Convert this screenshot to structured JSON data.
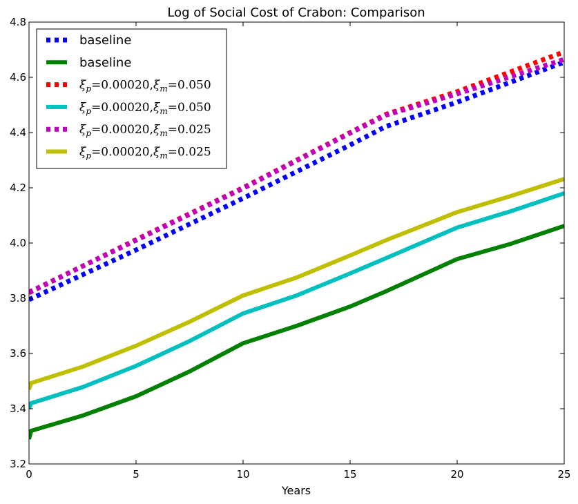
{
  "chart_data": {
    "type": "line",
    "title": "Log of Social Cost of Crabon: Comparison",
    "xlabel": "Years",
    "ylabel": "",
    "xlim": [
      0,
      25
    ],
    "ylim": [
      3.2,
      4.8
    ],
    "xticks": [
      0,
      5,
      10,
      15,
      20,
      25
    ],
    "yticks": [
      3.2,
      3.4,
      3.6,
      3.8,
      4.0,
      4.2,
      4.4,
      4.6,
      4.8
    ],
    "xtick_labels": [
      "0",
      "5",
      "10",
      "15",
      "20",
      "25"
    ],
    "ytick_labels": [
      "3.2",
      "3.4",
      "3.6",
      "3.8",
      "4.0",
      "4.2",
      "4.4",
      "4.6",
      "4.8"
    ],
    "grid": false,
    "legend_position": "top-left",
    "series": [
      {
        "name": "baseline",
        "style": "dotted",
        "color": "#0000ff",
        "x": [
          0,
          5,
          10,
          15,
          16.67,
          20,
          25
        ],
        "y": [
          3.795,
          3.975,
          4.162,
          4.355,
          4.422,
          4.51,
          4.655
        ]
      },
      {
        "name": "baseline",
        "style": "solid",
        "color": "#008000",
        "x": [
          0,
          0.1,
          2.5,
          5,
          7.5,
          10,
          12.5,
          15,
          16.67,
          20,
          22.5,
          25
        ],
        "y": [
          3.29,
          3.32,
          3.375,
          3.445,
          3.535,
          3.637,
          3.7,
          3.77,
          3.825,
          3.942,
          3.997,
          4.062
        ]
      },
      {
        "name": "ξp=0.00020,ξm=0.050",
        "style": "dotted",
        "color": "#ff0000",
        "x": [
          0,
          5,
          10,
          15,
          16.67,
          20,
          25
        ],
        "y": [
          3.82,
          4.012,
          4.2,
          4.4,
          4.466,
          4.548,
          4.692
        ]
      },
      {
        "name": "ξp=0.00020,ξm=0.050",
        "style": "solid",
        "color": "#00bfbf",
        "x": [
          0,
          0.1,
          2.5,
          5,
          7.5,
          10,
          12.5,
          15,
          16.67,
          20,
          22.5,
          25
        ],
        "y": [
          3.4,
          3.42,
          3.478,
          3.555,
          3.645,
          3.745,
          3.81,
          3.89,
          3.945,
          4.056,
          4.115,
          4.18
        ]
      },
      {
        "name": "ξp=0.00020,ξm=0.025",
        "style": "dotted",
        "color": "#bf00bf",
        "x": [
          0,
          5,
          10,
          15,
          16.67,
          20,
          25
        ],
        "y": [
          3.822,
          4.01,
          4.198,
          4.398,
          4.463,
          4.54,
          4.665
        ]
      },
      {
        "name": "ξp=0.00020,ξm=0.025",
        "style": "solid",
        "color": "#bfbf00",
        "x": [
          0,
          0.1,
          2.5,
          5,
          7.5,
          10,
          12.5,
          15,
          16.67,
          20,
          22.5,
          25
        ],
        "y": [
          3.47,
          3.493,
          3.552,
          3.628,
          3.715,
          3.81,
          3.875,
          3.955,
          4.01,
          4.112,
          4.17,
          4.232
        ]
      }
    ]
  },
  "legend": {
    "items": [
      {
        "label": "baseline"
      },
      {
        "label": "baseline"
      },
      {
        "label": "",
        "math_p": "0.00020",
        "math_m": "0.050"
      },
      {
        "label": "",
        "math_p": "0.00020",
        "math_m": "0.050"
      },
      {
        "label": "",
        "math_p": "0.00020",
        "math_m": "0.025"
      },
      {
        "label": "",
        "math_p": "0.00020",
        "math_m": "0.025"
      }
    ]
  }
}
